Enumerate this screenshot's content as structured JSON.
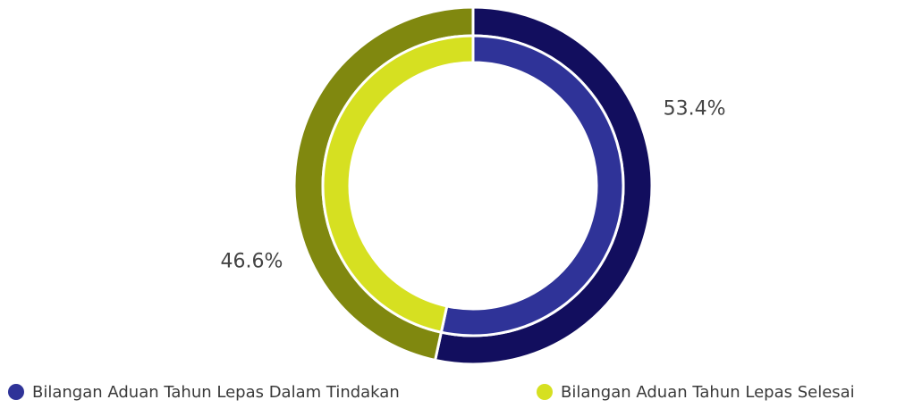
{
  "chart_data": {
    "type": "donut",
    "categories": [
      "Bilangan Aduan Tahun Lepas Dalam Tindakan",
      "Bilangan Aduan Tahun Lepas Selesai"
    ],
    "values": [
      53.4,
      46.6
    ],
    "value_labels": [
      "53.4%",
      "46.6%"
    ],
    "colors": [
      "#2f3398",
      "#d6e021"
    ],
    "outer_colors": [
      "#120e5e",
      "#80880f"
    ],
    "legend": "bottom"
  }
}
